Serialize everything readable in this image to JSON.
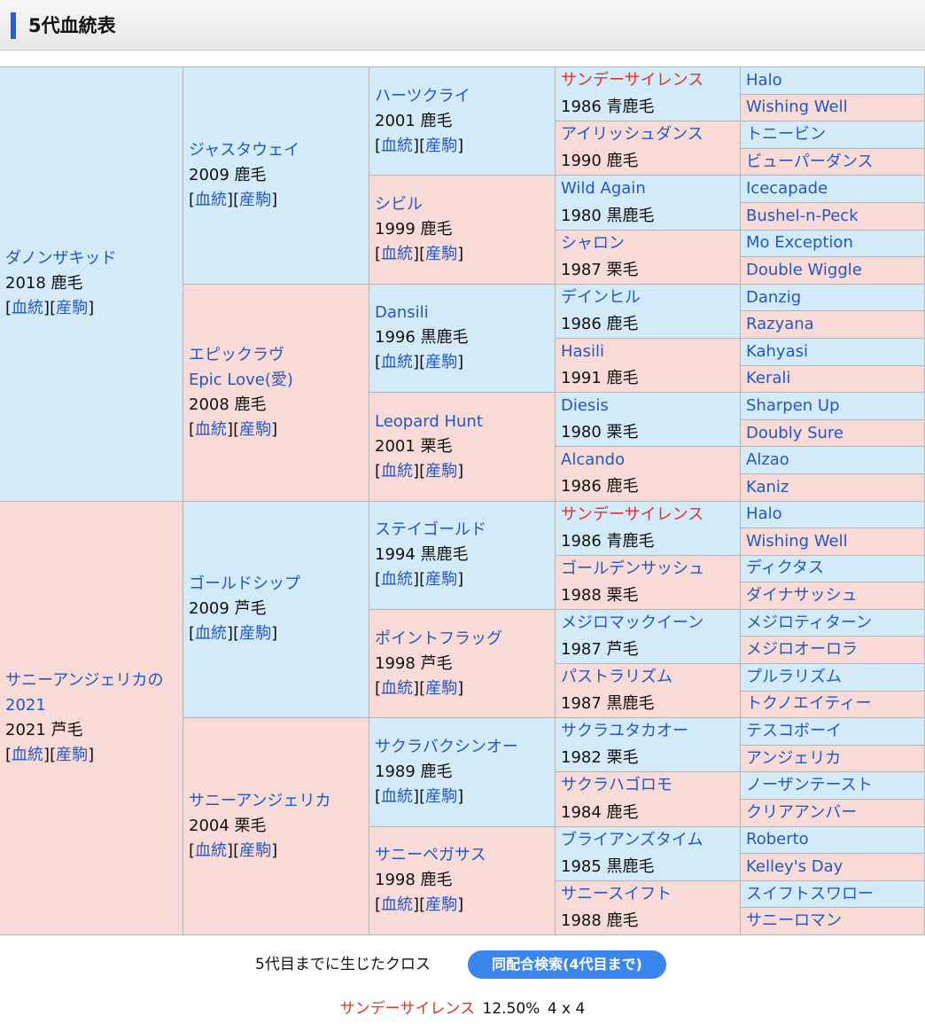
{
  "header": {
    "title": "5代血統表"
  },
  "brackets": [
    "[",
    "]"
  ],
  "pedigree": {
    "gen1": [
      {
        "name": "ダノンザキッド",
        "info": "2018 鹿毛",
        "links": [
          "血統",
          "産駒"
        ]
      },
      {
        "name": "サニーアンジェリカの2021",
        "info": "2021 芦毛",
        "links": [
          "血統",
          "産駒"
        ]
      }
    ],
    "gen2": [
      {
        "name": "ジャスタウェイ",
        "info": "2009 鹿毛",
        "links": [
          "血統",
          "産駒"
        ]
      },
      {
        "name": "エピックラヴ",
        "alt_name": "Epic Love(愛)",
        "info": "2008 鹿毛",
        "links": [
          "血統",
          "産駒"
        ]
      },
      {
        "name": "ゴールドシップ",
        "info": "2009 芦毛",
        "links": [
          "血統",
          "産駒"
        ]
      },
      {
        "name": "サニーアンジェリカ",
        "info": "2004 栗毛",
        "links": [
          "血統",
          "産駒"
        ]
      }
    ],
    "gen3": [
      {
        "name": "ハーツクライ",
        "info": "2001 鹿毛",
        "links": [
          "血統",
          "産駒"
        ]
      },
      {
        "name": "シビル",
        "info": "1999 鹿毛",
        "links": [
          "血統",
          "産駒"
        ]
      },
      {
        "name": "Dansili",
        "info": "1996 黒鹿毛",
        "links": [
          "血統",
          "産駒"
        ]
      },
      {
        "name": "Leopard Hunt",
        "info": "2001 栗毛",
        "links": [
          "血統",
          "産駒"
        ]
      },
      {
        "name": "ステイゴールド",
        "info": "1994 黒鹿毛",
        "links": [
          "血統",
          "産駒"
        ]
      },
      {
        "name": "ポイントフラッグ",
        "info": "1998 芦毛",
        "links": [
          "血統",
          "産駒"
        ]
      },
      {
        "name": "サクラバクシンオー",
        "info": "1989 鹿毛",
        "links": [
          "血統",
          "産駒"
        ]
      },
      {
        "name": "サニーペガサス",
        "info": "1998 鹿毛",
        "links": [
          "血統",
          "産駒"
        ]
      }
    ],
    "gen4": [
      {
        "name": "サンデーサイレンス",
        "info": "1986 青鹿毛",
        "cross": true
      },
      {
        "name": "アイリッシュダンス",
        "info": "1990 鹿毛"
      },
      {
        "name": "Wild Again",
        "info": "1980 黒鹿毛"
      },
      {
        "name": "シャロン",
        "info": "1987 栗毛"
      },
      {
        "name": "デインヒル",
        "info": "1986 鹿毛"
      },
      {
        "name": "Hasili",
        "info": "1991 鹿毛"
      },
      {
        "name": "Diesis",
        "info": "1980 栗毛"
      },
      {
        "name": "Alcando",
        "info": "1986 鹿毛"
      },
      {
        "name": "サンデーサイレンス",
        "info": "1986 青鹿毛",
        "cross": true
      },
      {
        "name": "ゴールデンサッシュ",
        "info": "1988 栗毛"
      },
      {
        "name": "メジロマックイーン",
        "info": "1987 芦毛"
      },
      {
        "name": "パストラリズム",
        "info": "1987 黒鹿毛"
      },
      {
        "name": "サクラユタカオー",
        "info": "1982 栗毛"
      },
      {
        "name": "サクラハゴロモ",
        "info": "1984 鹿毛"
      },
      {
        "name": "ブライアンズタイム",
        "info": "1985 黒鹿毛"
      },
      {
        "name": "サニースイフト",
        "info": "1988 鹿毛"
      }
    ],
    "gen5": [
      "Halo",
      "Wishing Well",
      "トニービン",
      "ビューパーダンス",
      "Icecapade",
      "Bushel-n-Peck",
      "Mo Exception",
      "Double Wiggle",
      "Danzig",
      "Razyana",
      "Kahyasi",
      "Kerali",
      "Sharpen Up",
      "Doubly Sure",
      "Alzao",
      "Kaniz",
      "Halo",
      "Wishing Well",
      "ディクタス",
      "ダイナサッシュ",
      "メジロティターン",
      "メジロオーロラ",
      "プルラリズム",
      "トクノエイティー",
      "テスコボーイ",
      "アンジェリカ",
      "ノーザンテースト",
      "クリアアンバー",
      "Roberto",
      "Kelley's Day",
      "スイフトスワロー",
      "サニーロマン"
    ]
  },
  "footer": {
    "cross_label": "5代目までに生じたクロス",
    "button": "同配合検索(4代目まで)",
    "crosses": [
      {
        "name": "サンデーサイレンス",
        "percent": "12.50%",
        "generations": "4 x 4"
      }
    ]
  }
}
